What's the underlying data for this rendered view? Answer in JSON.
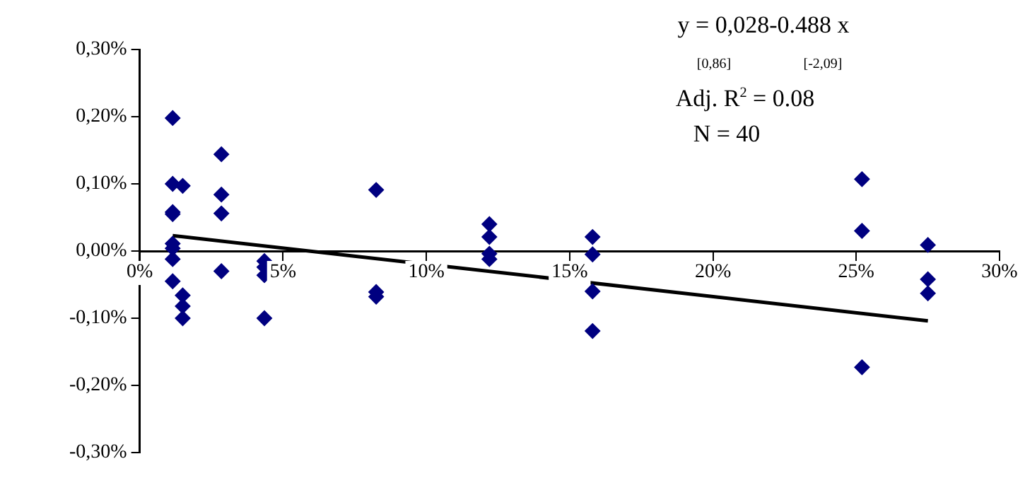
{
  "chart_data": {
    "type": "scatter",
    "grid": false,
    "legend": false,
    "xlim": [
      0,
      30
    ],
    "ylim": [
      -0.3,
      0.3
    ],
    "xticks": [
      {
        "value": 0,
        "label": "0%"
      },
      {
        "value": 5,
        "label": "5%"
      },
      {
        "value": 10,
        "label": "10%"
      },
      {
        "value": 15,
        "label": "15%"
      },
      {
        "value": 20,
        "label": "20%"
      },
      {
        "value": 25,
        "label": "25%"
      },
      {
        "value": 30,
        "label": "30%"
      }
    ],
    "yticks": [
      {
        "value": -0.3,
        "label": "-0,30%"
      },
      {
        "value": -0.2,
        "label": "-0,20%"
      },
      {
        "value": -0.1,
        "label": "-0,10%"
      },
      {
        "value": 0,
        "label": "0,00%"
      },
      {
        "value": 0.1,
        "label": "0,10%"
      },
      {
        "value": 0.2,
        "label": "0,20%"
      },
      {
        "value": 0.3,
        "label": "0,30%"
      }
    ],
    "annotations": [
      "y = 0,028-0.488 x",
      "[0,86]",
      "[-2,09]",
      "Adj. R$^{2}$ = 0.08",
      "N = 40"
    ],
    "series": [
      {
        "marker": "diamond",
        "color": "#000080",
        "x": [
          1.15,
          1.15,
          1.15,
          1.15,
          1.15,
          1.15,
          1.15,
          1.15,
          1.5,
          1.5,
          1.5,
          1.5,
          2.85,
          2.85,
          2.85,
          2.85,
          4.35,
          4.35,
          4.35,
          4.35,
          8.25,
          8.25,
          8.25,
          12.2,
          12.2,
          12.2,
          12.2,
          15.8,
          15.8,
          15.8,
          15.8,
          25.2,
          25.2,
          25.2,
          27.5,
          27.5,
          27.5
        ],
        "values": [
          0.198,
          0.1,
          0.058,
          0.055,
          0.011,
          0.004,
          -0.012,
          -0.045,
          0.097,
          -0.066,
          -0.082,
          -0.1,
          0.144,
          0.084,
          0.056,
          -0.03,
          -0.015,
          -0.024,
          -0.036,
          -0.1,
          0.091,
          -0.061,
          -0.068,
          0.04,
          0.021,
          -0.004,
          -0.012,
          0.021,
          -0.005,
          -0.06,
          -0.119,
          0.107,
          0.03,
          -0.173,
          0.009,
          -0.042,
          -0.063
        ]
      },
      {
        "type": "line",
        "marker": "none",
        "color": "#000000",
        "x": [
          1.15,
          27.5
        ],
        "values": [
          0.023,
          -0.104
        ]
      }
    ]
  }
}
